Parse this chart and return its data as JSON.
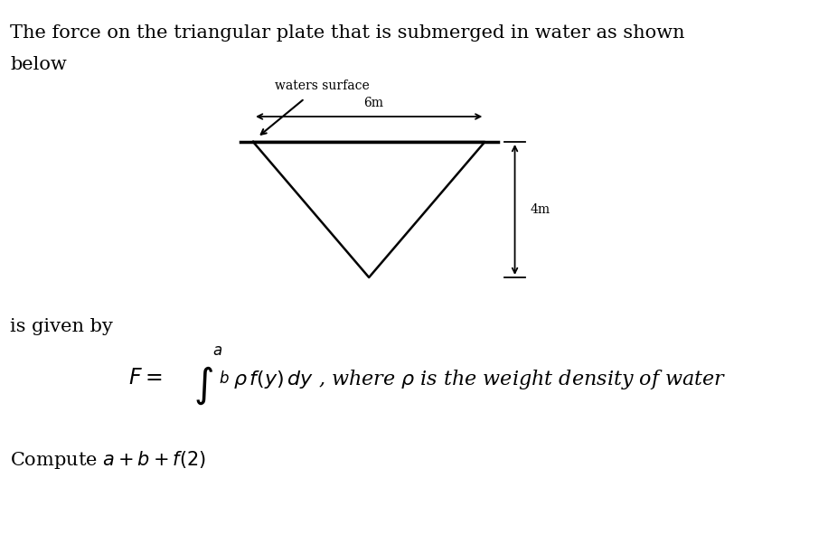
{
  "title_line1": "The force on the triangular plate that is submerged in water as shown",
  "title_line2": "below",
  "waters_surface_label": "waters surface",
  "width_label": "6m",
  "height_label": "4m",
  "is_given_by": "is given by",
  "integral_text": "F = ∫ₙᵇ ρ f(y) dy , where ρ is the weight density of water",
  "compute_text": "Compute a + b + f(2)",
  "bg_color": "#ffffff",
  "text_color": "#000000",
  "triangle_color": "#000000",
  "font_size_body": 15,
  "font_size_label": 11
}
